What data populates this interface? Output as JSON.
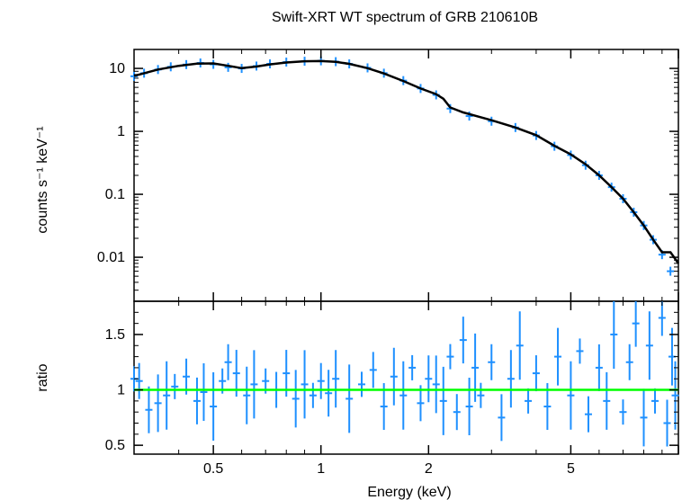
{
  "chart_data": [
    {
      "type": "scatter",
      "panel": "spectrum",
      "title": "Swift-XRT WT spectrum of GRB 210610B",
      "xlabel": "",
      "ylabel": "counts s⁻¹ keV⁻¹",
      "xscale": "log",
      "yscale": "log",
      "xlim": [
        0.3,
        10
      ],
      "ylim": [
        0.002,
        20
      ],
      "yticks": [
        {
          "value": 0.01,
          "label": "0.01"
        },
        {
          "value": 0.1,
          "label": "0.1"
        },
        {
          "value": 1,
          "label": "1"
        },
        {
          "value": 10,
          "label": "10"
        }
      ],
      "data_color": "#1e90ff",
      "model_color": "#000000",
      "series": [
        {
          "role": "data",
          "x": [
            0.3,
            0.32,
            0.35,
            0.38,
            0.42,
            0.46,
            0.5,
            0.55,
            0.6,
            0.66,
            0.72,
            0.8,
            0.9,
            1.0,
            1.1,
            1.2,
            1.35,
            1.5,
            1.7,
            1.9,
            2.1,
            2.3,
            2.6,
            3.0,
            3.5,
            4.0,
            4.5,
            5.0,
            5.5,
            6.0,
            6.5,
            7.0,
            7.5,
            8.0,
            8.5,
            9.0,
            9.5
          ],
          "y": [
            7.5,
            8.4,
            9.6,
            10.6,
            11.5,
            12.2,
            11.6,
            10.4,
            10.0,
            10.9,
            11.8,
            12.6,
            13.0,
            13.2,
            12.8,
            11.8,
            10.2,
            8.4,
            6.4,
            4.8,
            3.8,
            2.3,
            1.75,
            1.45,
            1.15,
            0.86,
            0.58,
            0.42,
            0.29,
            0.2,
            0.13,
            0.085,
            0.052,
            0.032,
            0.019,
            0.011,
            0.006
          ]
        },
        {
          "role": "model",
          "x": [
            0.3,
            0.35,
            0.4,
            0.45,
            0.5,
            0.55,
            0.6,
            0.66,
            0.72,
            0.8,
            0.9,
            1.0,
            1.1,
            1.2,
            1.35,
            1.5,
            1.7,
            1.9,
            2.1,
            2.2,
            2.3,
            2.5,
            3.0,
            3.5,
            4.0,
            4.5,
            5.0,
            5.5,
            6.0,
            6.5,
            7.0,
            7.5,
            8.0,
            8.5,
            9.0,
            9.5,
            10.0
          ],
          "y": [
            7.6,
            9.6,
            11.0,
            11.9,
            12.0,
            11.0,
            10.1,
            10.7,
            11.6,
            12.4,
            13.0,
            13.1,
            12.7,
            11.8,
            10.1,
            8.3,
            6.3,
            4.8,
            3.9,
            3.3,
            2.4,
            2.0,
            1.5,
            1.15,
            0.87,
            0.59,
            0.43,
            0.3,
            0.2,
            0.13,
            0.085,
            0.052,
            0.032,
            0.019,
            0.012,
            0.012,
            0.008
          ]
        }
      ]
    },
    {
      "type": "scatter",
      "panel": "ratio",
      "xlabel": "Energy (keV)",
      "ylabel": "ratio",
      "xscale": "log",
      "xlim": [
        0.3,
        10
      ],
      "ylim": [
        0.42,
        1.8
      ],
      "xticks": [
        {
          "value": 0.5,
          "label": "0.5"
        },
        {
          "value": 1,
          "label": "1"
        },
        {
          "value": 2,
          "label": "2"
        },
        {
          "value": 5,
          "label": "5"
        }
      ],
      "yticks": [
        {
          "value": 0.5,
          "label": "0.5"
        },
        {
          "value": 1,
          "label": "1"
        },
        {
          "value": 1.5,
          "label": "1.5"
        }
      ],
      "reference_line": {
        "value": 1,
        "color": "#00ff00"
      },
      "data_color": "#1e90ff",
      "series": [
        {
          "role": "data",
          "x": [
            0.3,
            0.31,
            0.33,
            0.35,
            0.37,
            0.39,
            0.42,
            0.45,
            0.47,
            0.5,
            0.53,
            0.55,
            0.58,
            0.62,
            0.65,
            0.7,
            0.75,
            0.8,
            0.85,
            0.9,
            0.95,
            1.0,
            1.05,
            1.1,
            1.2,
            1.3,
            1.4,
            1.5,
            1.6,
            1.7,
            1.8,
            1.9,
            2.0,
            2.1,
            2.2,
            2.3,
            2.4,
            2.5,
            2.6,
            2.7,
            2.8,
            3.0,
            3.2,
            3.4,
            3.6,
            3.8,
            4.0,
            4.3,
            4.6,
            5.0,
            5.3,
            5.6,
            6.0,
            6.3,
            6.6,
            7.0,
            7.3,
            7.6,
            8.0,
            8.3,
            8.6,
            9.0,
            9.3,
            9.6,
            9.8
          ],
          "y": [
            1.1,
            1.08,
            0.82,
            0.88,
            0.95,
            1.03,
            1.12,
            0.9,
            0.98,
            0.85,
            1.08,
            1.25,
            1.15,
            0.95,
            1.05,
            1.08,
            1.0,
            1.15,
            0.92,
            1.05,
            0.95,
            1.08,
            0.97,
            1.1,
            0.92,
            1.05,
            1.18,
            0.85,
            1.12,
            0.95,
            1.2,
            0.88,
            1.1,
            1.05,
            0.9,
            1.3,
            0.8,
            1.45,
            0.85,
            1.2,
            0.95,
            1.25,
            0.75,
            1.1,
            1.4,
            0.9,
            1.15,
            0.85,
            1.3,
            0.95,
            1.35,
            0.78,
            1.2,
            0.9,
            1.5,
            0.8,
            1.25,
            1.6,
            0.75,
            1.4,
            0.9,
            1.65,
            0.7,
            1.3,
            0.95
          ]
        }
      ]
    }
  ]
}
